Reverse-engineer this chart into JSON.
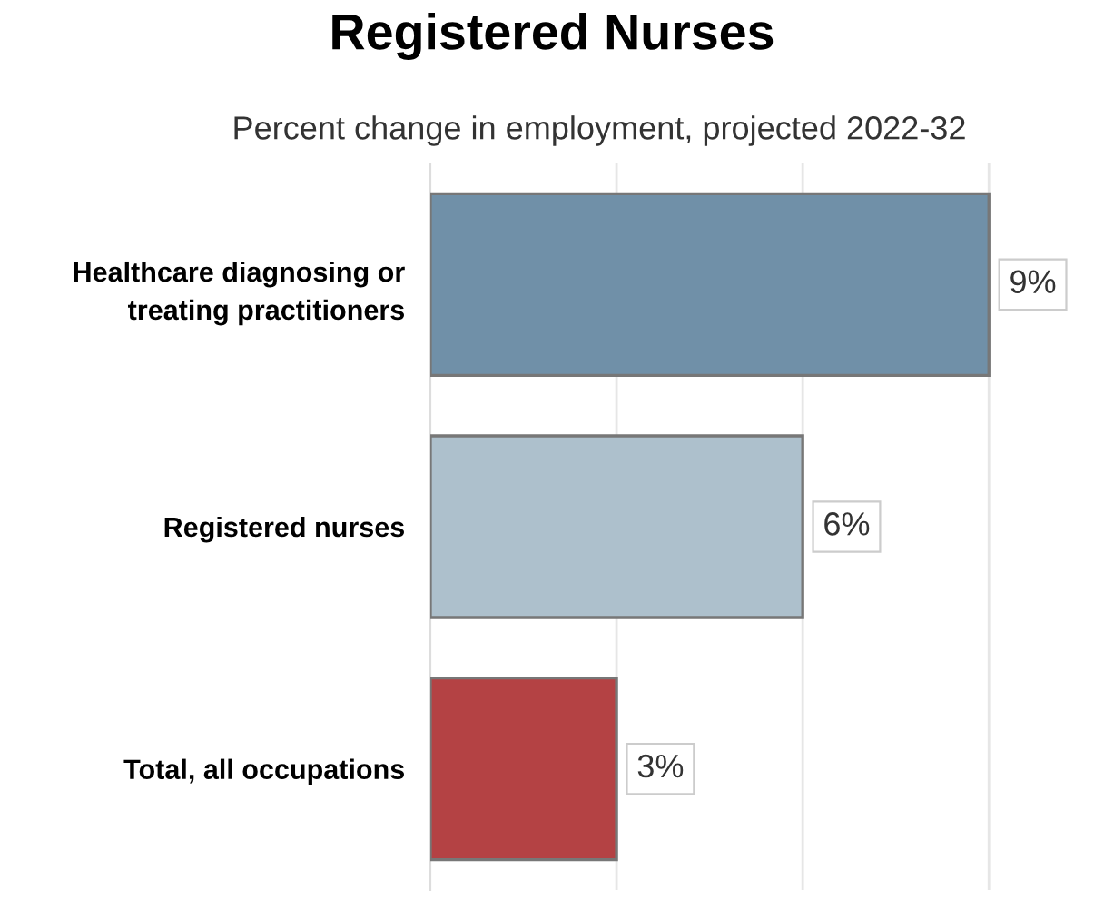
{
  "chart_data": {
    "type": "bar",
    "orientation": "horizontal",
    "title": "Registered Nurses",
    "subtitle": "Percent change in employment, projected 2022-32",
    "categories": [
      "Healthcare diagnosing or\ntreating practitioners",
      "Registered nurses",
      "Total, all occupations"
    ],
    "values": [
      9,
      6,
      3
    ],
    "colors": [
      "#7090a8",
      "#adc0cc",
      "#b44244"
    ],
    "value_labels": [
      "9%",
      "6%",
      "3%"
    ],
    "ref_lines": [
      {
        "axis": "x",
        "value": 3,
        "color": "#e6e6e6"
      },
      {
        "axis": "x",
        "value": 6,
        "color": "#e6e6e6"
      },
      {
        "axis": "x",
        "value": 9,
        "color": "#e6e6e6"
      }
    ],
    "tick_labels": "y"
  }
}
